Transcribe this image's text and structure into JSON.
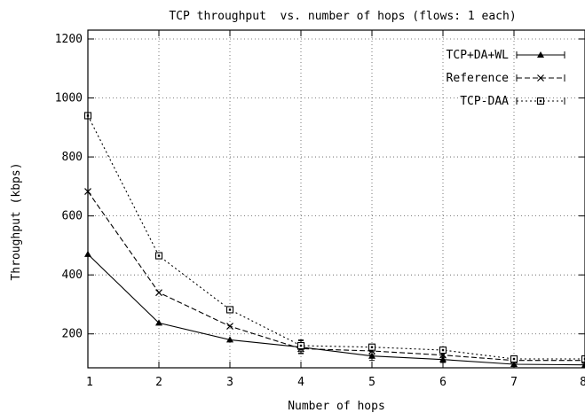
{
  "chart_data": {
    "type": "line",
    "title": "TCP throughput  vs. number of hops (flows: 1 each)",
    "xlabel": "Number of hops",
    "ylabel": "Throughput (kbps)",
    "xlim": [
      1,
      8
    ],
    "ylim": [
      85,
      1230
    ],
    "x_ticks": [
      1,
      2,
      3,
      4,
      5,
      6,
      7,
      8
    ],
    "y_ticks": [
      200,
      400,
      600,
      800,
      1000,
      1200
    ],
    "grid": true,
    "legend_position": "top-right",
    "series": [
      {
        "name": "TCP+DA+WL",
        "marker": "triangle",
        "dash": "solid",
        "x": [
          1,
          2,
          3,
          4,
          5,
          6,
          7,
          8
        ],
        "y": [
          470,
          237,
          180,
          155,
          125,
          113,
          97,
          95
        ],
        "err": [
          0,
          0,
          0,
          22,
          15,
          10,
          8,
          5
        ]
      },
      {
        "name": "Reference",
        "marker": "cross",
        "dash": "dashed",
        "x": [
          1,
          2,
          3,
          4,
          5,
          6,
          7,
          8
        ],
        "y": [
          683,
          340,
          226,
          150,
          142,
          128,
          110,
          110
        ],
        "err": [
          0,
          0,
          0,
          15,
          12,
          8,
          6,
          4
        ]
      },
      {
        "name": "TCP-DAA",
        "marker": "square",
        "dash": "dotted",
        "x": [
          1,
          2,
          3,
          4,
          5,
          6,
          7,
          8
        ],
        "y": [
          940,
          465,
          282,
          160,
          155,
          145,
          115,
          115
        ],
        "err": [
          0,
          0,
          0,
          20,
          10,
          8,
          5,
          4
        ]
      }
    ]
  }
}
